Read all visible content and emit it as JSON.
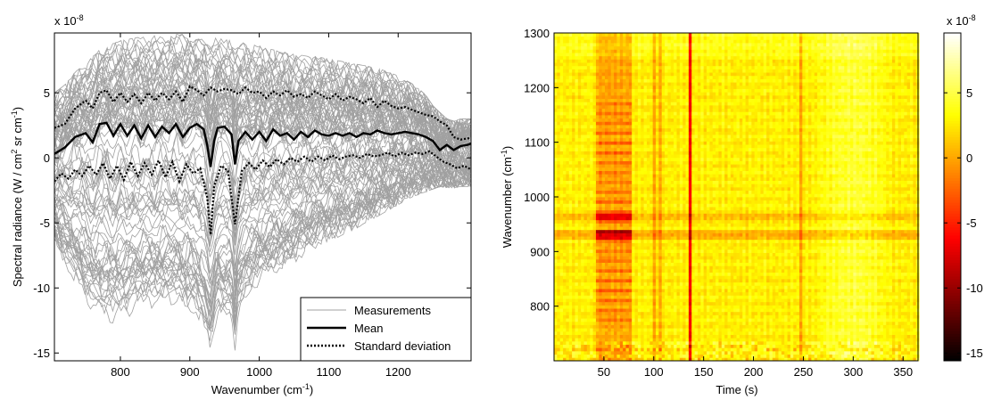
{
  "chart_data": [
    {
      "type": "line",
      "xlabel": "Wavenumber (cm",
      "xlabel_sup": "-1",
      "xlabel_end": ")",
      "ylabel": "Spectral radiance (W / cm",
      "ylabel_sup1": "2",
      "ylabel_mid": " sr cm",
      "ylabel_sup2": "-1",
      "ylabel_end": ")",
      "exponent_base": "x 10",
      "exponent_power": "-8",
      "xlim": [
        705,
        1305
      ],
      "ylim": [
        -15.6,
        9.6
      ],
      "xticks": [
        800,
        900,
        1000,
        1100,
        1200
      ],
      "yticks": [
        -15,
        -10,
        -5,
        0,
        5
      ],
      "legend_position": "bottom-right",
      "grid": false,
      "series": [
        {
          "name": "Measurements",
          "style": "thin-gray",
          "color": "#a0a0a0"
        },
        {
          "name": "Mean",
          "style": "solid-black",
          "color": "#000000",
          "x": [
            705,
            720,
            735,
            750,
            760,
            770,
            780,
            790,
            800,
            810,
            820,
            830,
            840,
            850,
            860,
            870,
            880,
            890,
            900,
            910,
            920,
            925,
            930,
            935,
            940,
            950,
            960,
            965,
            970,
            980,
            990,
            1000,
            1010,
            1020,
            1030,
            1040,
            1050,
            1060,
            1070,
            1080,
            1090,
            1100,
            1110,
            1120,
            1130,
            1140,
            1150,
            1160,
            1170,
            1180,
            1190,
            1200,
            1210,
            1220,
            1230,
            1240,
            1250,
            1260,
            1270,
            1280,
            1290,
            1300,
            1305
          ],
          "y": [
            0.3,
            0.8,
            1.6,
            1.9,
            1.2,
            2.6,
            2.7,
            1.7,
            2.6,
            1.7,
            2.5,
            1.5,
            2.5,
            1.6,
            2.4,
            1.9,
            2.6,
            1.6,
            2.3,
            2.6,
            2.2,
            1.0,
            -0.7,
            1.3,
            2.3,
            2.4,
            1.8,
            -0.5,
            1.3,
            2.0,
            1.4,
            2.0,
            1.3,
            2.2,
            1.7,
            1.9,
            1.4,
            2.0,
            1.6,
            2.1,
            1.8,
            1.7,
            1.9,
            1.7,
            1.9,
            1.6,
            1.9,
            1.8,
            2.1,
            1.9,
            1.8,
            1.9,
            2.0,
            1.9,
            1.8,
            1.6,
            1.3,
            0.6,
            1.0,
            0.6,
            0.9,
            1.0,
            1.1
          ]
        },
        {
          "name": "Standard deviation",
          "style": "dotted-black",
          "color": "#000000",
          "x_upper": [
            705,
            720,
            735,
            750,
            760,
            770,
            780,
            790,
            800,
            810,
            820,
            830,
            840,
            850,
            860,
            870,
            880,
            890,
            900,
            910,
            920,
            930,
            940,
            950,
            960,
            970,
            980,
            990,
            1000,
            1010,
            1020,
            1030,
            1040,
            1050,
            1060,
            1070,
            1080,
            1090,
            1100,
            1110,
            1120,
            1130,
            1140,
            1150,
            1160,
            1170,
            1180,
            1190,
            1200,
            1210,
            1220,
            1230,
            1240,
            1250,
            1260,
            1270,
            1280,
            1290,
            1300,
            1305
          ],
          "upper": [
            2.3,
            2.6,
            3.8,
            4.4,
            3.8,
            5.0,
            5.2,
            4.3,
            5.0,
            4.3,
            4.9,
            4.2,
            5.0,
            4.4,
            5.0,
            4.5,
            5.1,
            4.3,
            5.5,
            5.2,
            4.8,
            5.4,
            5.1,
            5.3,
            5.2,
            4.9,
            5.4,
            5.0,
            5.1,
            4.6,
            5.1,
            4.8,
            5.2,
            4.7,
            4.9,
            4.6,
            5.1,
            4.8,
            4.5,
            4.9,
            4.4,
            4.7,
            4.5,
            4.2,
            4.6,
            3.9,
            4.4,
            4.0,
            3.8,
            3.9,
            3.7,
            3.5,
            3.3,
            3.2,
            2.8,
            2.5,
            1.6,
            1.4,
            1.5,
            1.5
          ],
          "x_lower": [
            705,
            715,
            725,
            735,
            745,
            755,
            765,
            775,
            785,
            795,
            805,
            815,
            825,
            835,
            845,
            855,
            865,
            875,
            885,
            895,
            905,
            915,
            925,
            930,
            935,
            945,
            955,
            965,
            975,
            985,
            995,
            1005,
            1015,
            1025,
            1035,
            1045,
            1055,
            1065,
            1075,
            1085,
            1095,
            1105,
            1115,
            1125,
            1135,
            1145,
            1155,
            1165,
            1175,
            1185,
            1195,
            1205,
            1215,
            1225,
            1235,
            1245,
            1255,
            1265,
            1275,
            1285,
            1295,
            1305
          ],
          "lower": [
            -1.8,
            -1.2,
            -1.6,
            -0.9,
            -1.4,
            -0.6,
            -1.3,
            -0.4,
            -1.6,
            -0.6,
            -1.7,
            -0.3,
            -1.4,
            -0.4,
            -1.3,
            -0.2,
            -1.5,
            -0.3,
            -1.8,
            -0.5,
            -1.2,
            -0.8,
            -3.0,
            -5.9,
            -2.2,
            -0.6,
            -1.0,
            -5.1,
            -1.0,
            -0.4,
            -0.9,
            -0.2,
            -0.7,
            -0.1,
            -0.5,
            0.0,
            -0.3,
            0.1,
            -0.3,
            0.1,
            -0.2,
            0.2,
            -0.1,
            0.1,
            0.2,
            0.0,
            0.3,
            0.1,
            0.2,
            0.4,
            0.1,
            0.4,
            0.2,
            0.4,
            0.3,
            0.5,
            0.1,
            -0.3,
            -0.5,
            -0.8,
            -0.6,
            -0.9
          ]
        }
      ],
      "envelope": {
        "x": [
          705,
          720,
          735,
          750,
          760,
          770,
          780,
          790,
          800,
          810,
          820,
          830,
          840,
          850,
          860,
          870,
          880,
          890,
          900,
          910,
          920,
          925,
          930,
          935,
          940,
          950,
          960,
          965,
          970,
          980,
          990,
          1000,
          1010,
          1020,
          1030,
          1040,
          1050,
          1060,
          1070,
          1080,
          1090,
          1100,
          1110,
          1120,
          1130,
          1140,
          1150,
          1160,
          1170,
          1180,
          1190,
          1200,
          1210,
          1220,
          1230,
          1240,
          1250,
          1260,
          1270,
          1280,
          1290,
          1300,
          1305
        ],
        "upper": [
          5.0,
          5.6,
          6.6,
          7.2,
          7.8,
          8.3,
          8.6,
          8.8,
          9.0,
          9.1,
          9.2,
          9.3,
          9.3,
          9.4,
          9.4,
          9.5,
          9.5,
          9.5,
          9.4,
          9.4,
          9.3,
          9.3,
          9.3,
          9.2,
          9.2,
          9.1,
          9.0,
          8.9,
          8.9,
          8.8,
          8.7,
          8.6,
          8.4,
          8.3,
          8.2,
          8.1,
          8.0,
          7.9,
          7.8,
          7.8,
          7.7,
          7.6,
          7.5,
          7.4,
          7.3,
          7.2,
          7.1,
          7.0,
          6.9,
          6.7,
          6.5,
          6.3,
          6.0,
          5.7,
          5.3,
          4.8,
          4.0,
          3.5,
          3.0,
          2.8,
          3.0,
          3.0,
          3.0
        ],
        "lower": [
          -6.5,
          -8.3,
          -9.6,
          -11.2,
          -11.8,
          -12.3,
          -12.6,
          -12.7,
          -12.6,
          -12.3,
          -11.9,
          -11.6,
          -11.6,
          -11.5,
          -11.4,
          -11.4,
          -11.5,
          -11.6,
          -12.1,
          -12.6,
          -13.5,
          -14.5,
          -15.6,
          -13.4,
          -12.5,
          -12.9,
          -12.5,
          -14.8,
          -12.2,
          -11.3,
          -10.5,
          -9.8,
          -9.4,
          -9.1,
          -8.9,
          -8.5,
          -8.1,
          -7.7,
          -7.3,
          -7.0,
          -6.6,
          -6.4,
          -6.2,
          -5.9,
          -5.7,
          -5.4,
          -5.1,
          -4.8,
          -4.5,
          -4.2,
          -3.9,
          -3.6,
          -3.3,
          -3.0,
          -2.8,
          -2.6,
          -2.4,
          -2.2,
          -2.3,
          -2.3,
          -2.2,
          -2.2,
          -2.2
        ]
      }
    },
    {
      "type": "heatmap",
      "xlabel": "Time (s)",
      "ylabel": "Wavenumber (cm",
      "ylabel_sup": "-1",
      "ylabel_end": ")",
      "xlim": [
        0,
        365
      ],
      "ylim": [
        700,
        1300
      ],
      "xticks": [
        50,
        100,
        150,
        200,
        250,
        300,
        350
      ],
      "yticks": [
        800,
        900,
        1000,
        1100,
        1200,
        1300
      ],
      "colorbar": {
        "exponent_base": "x 10",
        "exponent_power": "-8",
        "ticks": [
          5,
          0,
          -5,
          -10,
          -15
        ],
        "range": [
          -15.6,
          9.6
        ],
        "colormap": "hot",
        "position": "right"
      },
      "features": {
        "dark_time_band": [
          43,
          78
        ],
        "narrow_dark_times": [
          100,
          107,
          137,
          248
        ],
        "dark_wavenumbers": [
          930,
          965
        ],
        "bright_time_band": [
          260,
          340
        ]
      }
    }
  ]
}
